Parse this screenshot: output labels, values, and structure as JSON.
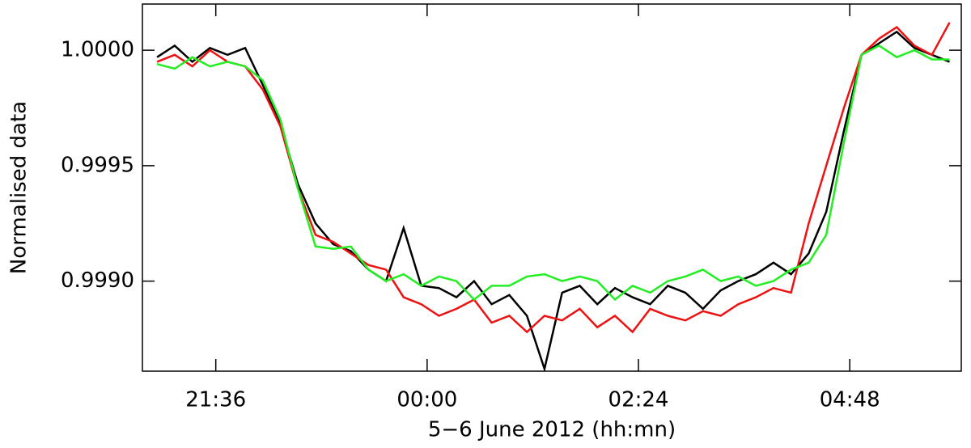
{
  "chart_data": {
    "type": "line",
    "xlabel": "5−6 June 2012 (hh:mn)",
    "ylabel": "Normalised data",
    "x": [
      -184,
      -172,
      -160,
      -148,
      -136,
      -124,
      -112,
      -100,
      -88,
      -76,
      -64,
      -52,
      -40,
      -28,
      -16,
      -4,
      8,
      20,
      32,
      44,
      56,
      68,
      80,
      92,
      104,
      116,
      128,
      140,
      152,
      164,
      176,
      188,
      200,
      212,
      224,
      236,
      248,
      260,
      272,
      284,
      296,
      308,
      320,
      332,
      344,
      356
    ],
    "series": [
      {
        "color": "#000000",
        "values": [
          0.99997,
          1.00002,
          0.99995,
          1.00001,
          0.99998,
          1.00001,
          0.99985,
          0.99968,
          0.99942,
          0.99925,
          0.99916,
          0.99913,
          0.99905,
          0.999,
          0.99923,
          0.99898,
          0.99897,
          0.99893,
          0.999,
          0.9989,
          0.99894,
          0.99885,
          0.99862,
          0.99895,
          0.99898,
          0.9989,
          0.99897,
          0.99893,
          0.9989,
          0.99898,
          0.99895,
          0.99888,
          0.99896,
          0.999,
          0.99903,
          0.99908,
          0.99903,
          0.99912,
          0.9993,
          0.99965,
          0.99998,
          1.00003,
          1.00008,
          1.00001,
          0.99998,
          0.99995
        ]
      },
      {
        "color": "#ee1111",
        "values": [
          0.99995,
          0.99998,
          0.99993,
          1.0,
          0.99995,
          0.99993,
          0.99983,
          0.99967,
          0.9994,
          0.9992,
          0.99917,
          0.99912,
          0.99907,
          0.99905,
          0.99893,
          0.9989,
          0.99885,
          0.99888,
          0.99892,
          0.99882,
          0.99885,
          0.99878,
          0.99885,
          0.99883,
          0.99888,
          0.9988,
          0.99885,
          0.99878,
          0.99888,
          0.99885,
          0.99883,
          0.99887,
          0.99885,
          0.9989,
          0.99893,
          0.99897,
          0.99895,
          0.99925,
          0.9995,
          0.99975,
          0.99998,
          1.00005,
          1.0001,
          1.00002,
          0.99998,
          1.00012
        ]
      },
      {
        "color": "#22ee22",
        "values": [
          0.99994,
          0.99992,
          0.99997,
          0.99993,
          0.99995,
          0.99993,
          0.99987,
          0.9997,
          0.9994,
          0.99915,
          0.99914,
          0.99915,
          0.99905,
          0.999,
          0.99903,
          0.99898,
          0.99902,
          0.999,
          0.99892,
          0.99898,
          0.99898,
          0.99902,
          0.99903,
          0.999,
          0.99902,
          0.999,
          0.99892,
          0.99898,
          0.99895,
          0.999,
          0.99902,
          0.99905,
          0.999,
          0.99902,
          0.99898,
          0.999,
          0.99905,
          0.99908,
          0.9992,
          0.9996,
          0.99998,
          1.00002,
          0.99997,
          1.0,
          0.99996,
          0.99996
        ]
      }
    ],
    "xlim": [
      -194,
      364
    ],
    "xticks": [
      {
        "value": -144,
        "label": "21:36"
      },
      {
        "value": 0,
        "label": "00:00"
      },
      {
        "value": 144,
        "label": "02:24"
      },
      {
        "value": 288,
        "label": "04:48"
      }
    ],
    "ylim": [
      0.99861,
      1.0002
    ],
    "yticks": [
      {
        "value": 0.999,
        "label": "0.9990"
      },
      {
        "value": 0.9995,
        "label": "0.9995"
      },
      {
        "value": 1.0,
        "label": "1.0000"
      }
    ]
  }
}
